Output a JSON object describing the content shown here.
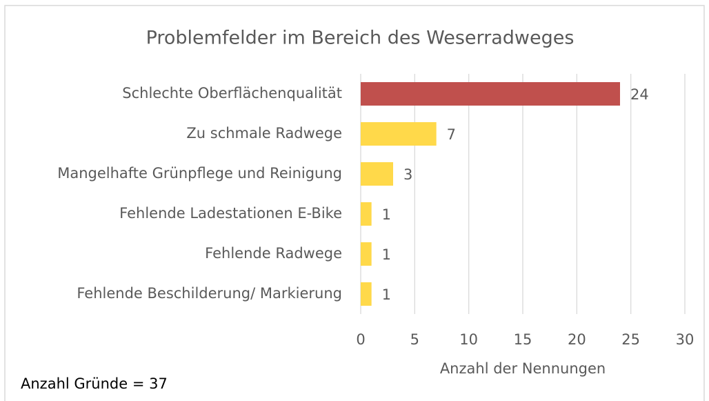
{
  "chart_data": {
    "type": "barh",
    "title": "Problemfelder im Bereich des Weserradweges",
    "categories": [
      "Schlechte Oberflächenqualität",
      "Zu schmale Radwege",
      "Mangelhafte Grünpflege und Reinigung",
      "Fehlende Ladestationen E-Bike",
      "Fehlende Radwege",
      "Fehlende Beschilderung/ Markierung"
    ],
    "values": [
      24,
      7,
      3,
      1,
      1,
      1
    ],
    "colors": [
      "#c0504d",
      "#ffd94a",
      "#ffd94a",
      "#ffd94a",
      "#ffd94a",
      "#ffd94a"
    ],
    "xlim": [
      0,
      30
    ],
    "xticks": [
      0,
      5,
      10,
      15,
      20,
      25,
      30
    ],
    "xlabel": "Anzahl der Nennungen",
    "grid": true,
    "annotation": "Anzahl Gründe = 37"
  }
}
